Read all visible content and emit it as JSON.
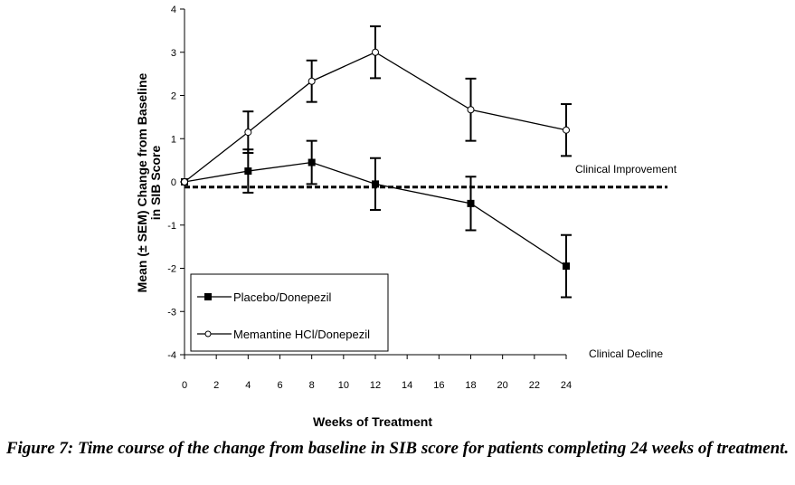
{
  "chart_data": {
    "type": "line",
    "x": [
      0,
      4,
      8,
      12,
      18,
      24
    ],
    "series": [
      {
        "name": "Placebo/Donepezil",
        "marker": "filled-square",
        "values": [
          0,
          0.25,
          0.45,
          -0.05,
          -0.5,
          -1.95
        ],
        "sem": [
          0,
          0.5,
          0.5,
          0.6,
          0.62,
          0.72
        ]
      },
      {
        "name": "Memantine HCl/Donepezil",
        "marker": "open-circle",
        "values": [
          0,
          1.15,
          2.33,
          3.0,
          1.67,
          1.2
        ],
        "sem": [
          0,
          0.48,
          0.48,
          0.6,
          0.72,
          0.6
        ]
      }
    ],
    "xticks": [
      "0",
      "2",
      "4",
      "6",
      "8",
      "10",
      "12",
      "14",
      "16",
      "18",
      "20",
      "22",
      "24"
    ],
    "yticks": [
      "4",
      "3",
      "2",
      "1",
      "0",
      "-1",
      "-2",
      "-3",
      "-4"
    ],
    "xlabel": "Weeks of Treatment",
    "ylabel_line1": "Mean (± SEM) Change from Baseline",
    "ylabel_line2": "in SIB Score",
    "xlim": [
      0,
      24
    ],
    "ylim": [
      -4,
      4
    ],
    "reference_line": {
      "y": -0.12,
      "style": "dashed"
    },
    "annotations": {
      "improvement": "Clinical Improvement",
      "decline": "Clinical Decline"
    },
    "legend_position": "bottom-left",
    "grid": false
  },
  "caption": "Figure 7: Time course of the change from baseline in SIB score for patients completing 24 weeks of treatment."
}
